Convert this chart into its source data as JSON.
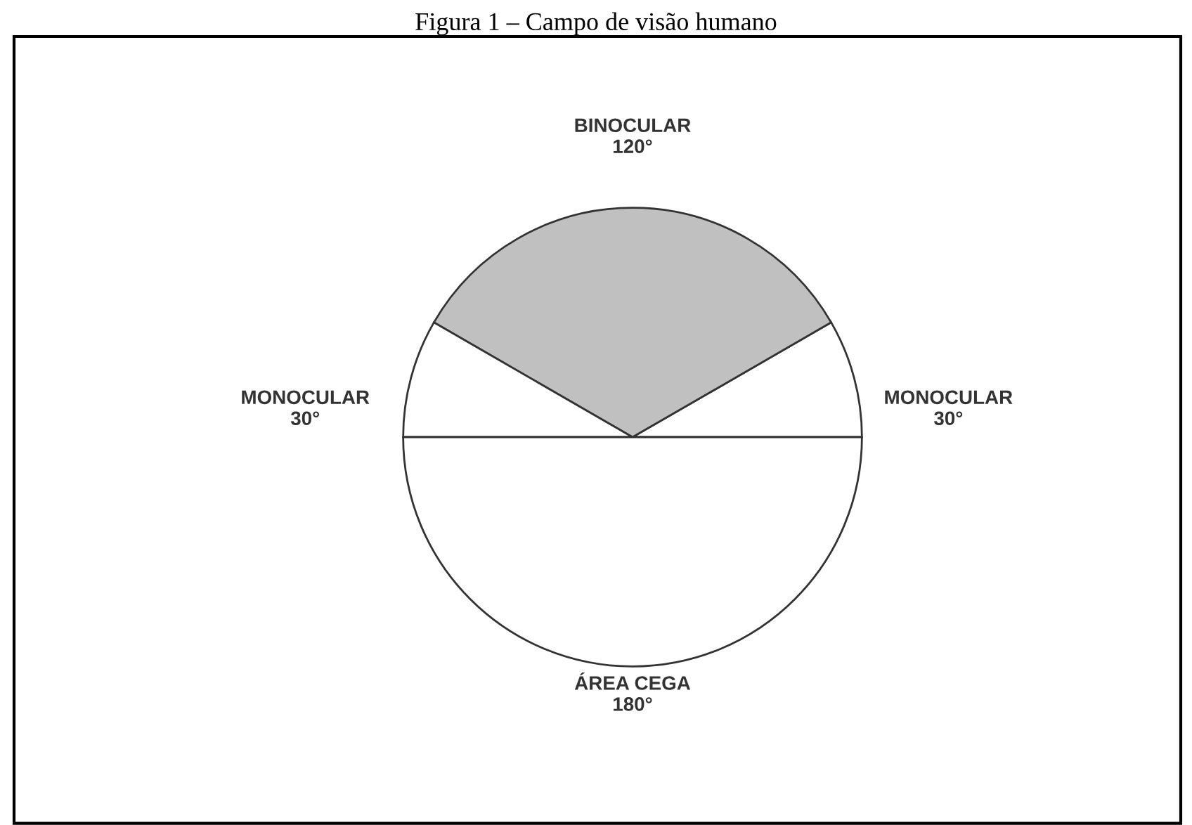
{
  "chart_data": {
    "type": "pie",
    "title": "Figura 1 – Campo de visão humano",
    "categories": [
      "MONOCULAR",
      "BINOCULAR",
      "MONOCULAR",
      "ÁREA CEGA"
    ],
    "values": [
      30,
      120,
      30,
      180
    ],
    "value_labels": [
      "30°",
      "120°",
      "30°",
      "180°"
    ],
    "colors": [
      "#ffffff",
      "#c0c0c0",
      "#ffffff",
      "#ffffff"
    ]
  }
}
